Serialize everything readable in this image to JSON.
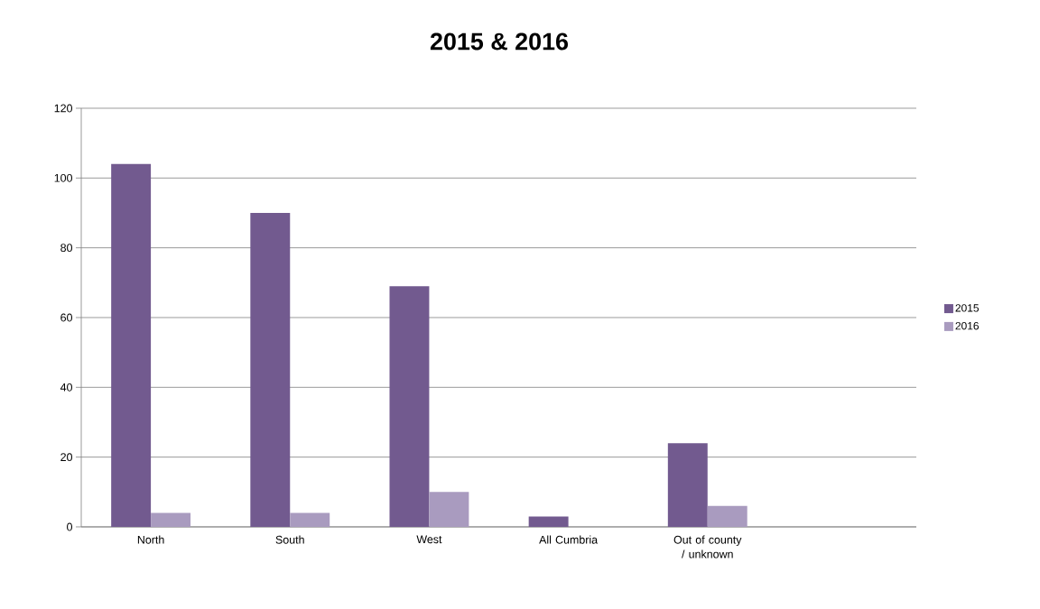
{
  "chart_data": {
    "type": "bar",
    "title": "2015 & 2016",
    "categories": [
      "North",
      "South",
      "West",
      "All Cumbria",
      "Out of county / unknown",
      null
    ],
    "series": [
      {
        "name": "2015",
        "color": "#725a8f",
        "values": [
          104,
          90,
          69,
          3,
          24,
          null
        ]
      },
      {
        "name": "2016",
        "color": "#a99bbf",
        "values": [
          4,
          4,
          10,
          0,
          6,
          null
        ]
      }
    ],
    "ylim": [
      0,
      120
    ],
    "yticks": [
      0,
      20,
      40,
      60,
      80,
      100,
      120
    ],
    "grid": "y",
    "legend": "right"
  }
}
